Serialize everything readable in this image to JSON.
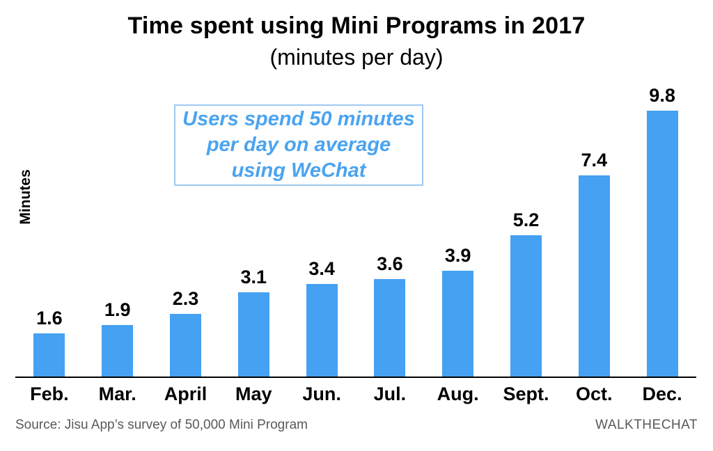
{
  "chart_data": {
    "type": "bar",
    "title": "Time spent using Mini Programs in 2017",
    "subtitle": "(minutes per day)",
    "ylabel": "Minutes",
    "xlabel": "",
    "categories": [
      "Feb.",
      "Mar.",
      "April",
      "May",
      "Jun.",
      "Jul.",
      "Aug.",
      "Sept.",
      "Oct.",
      "Dec."
    ],
    "values": [
      1.6,
      1.9,
      2.3,
      3.1,
      3.4,
      3.6,
      3.9,
      5.2,
      7.4,
      9.8
    ],
    "ylim": [
      0,
      10
    ],
    "grid": false,
    "legend": false,
    "data_labels": true,
    "bar_color": "#45a1f1"
  },
  "annotation": {
    "lines": [
      "Users spend 50 minutes",
      "per day on average",
      "using WeChat"
    ],
    "text_color": "#4aa4f0",
    "border_color": "#9dc9f2"
  },
  "footer": {
    "source": "Source: Jisu App’s survey of 50,000 Mini Program",
    "brand": "WALKTHECHAT"
  }
}
